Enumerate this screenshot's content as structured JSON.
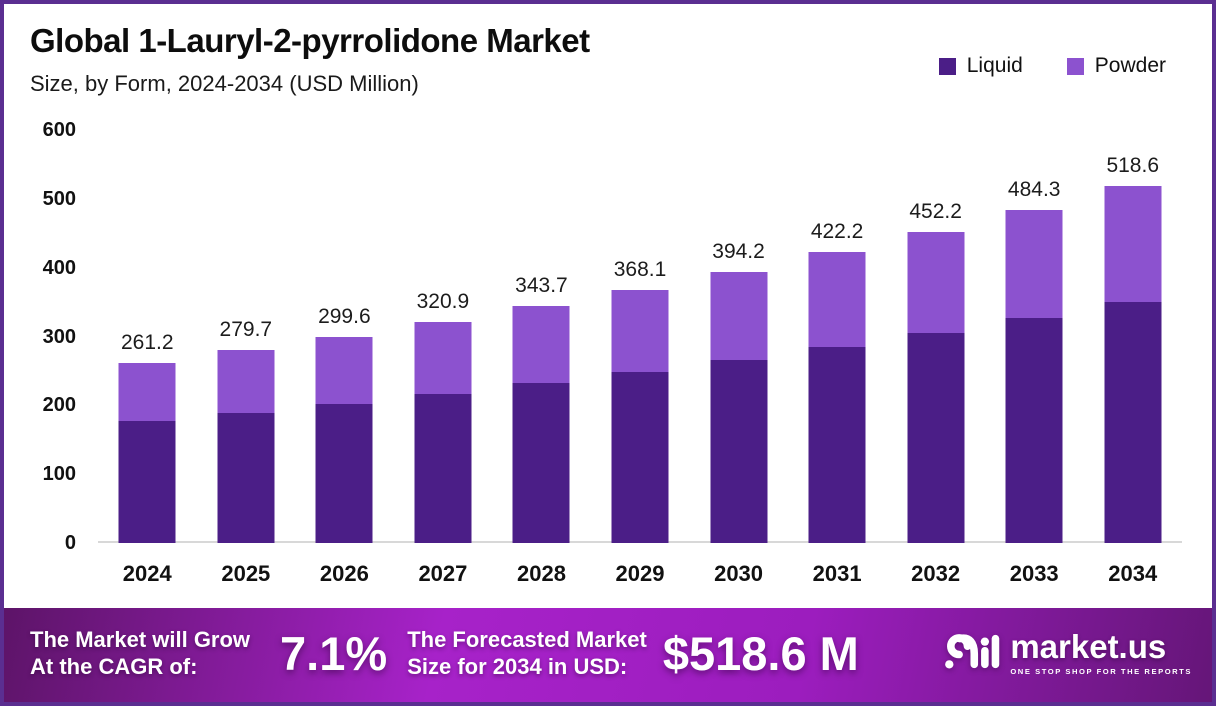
{
  "frame": {
    "border_color": "#5b2e91",
    "background": "#ffffff"
  },
  "header": {
    "title": "Global 1-Lauryl-2-pyrrolidone Market",
    "subtitle": "Size, by Form, 2024-2034 (USD Million)"
  },
  "chart_data": {
    "type": "bar",
    "stacked": true,
    "title": "Global 1-Lauryl-2-pyrrolidone Market Size, by Form, 2024-2034 (USD Million)",
    "categories": [
      "2024",
      "2025",
      "2026",
      "2027",
      "2028",
      "2029",
      "2030",
      "2031",
      "2032",
      "2033",
      "2034"
    ],
    "totals": [
      261.2,
      279.7,
      299.6,
      320.9,
      343.7,
      368.1,
      394.2,
      422.2,
      452.2,
      484.3,
      518.6
    ],
    "total_labels": [
      "261.2",
      "279.7",
      "299.6",
      "320.9",
      "343.7",
      "368.1",
      "394.2",
      "422.2",
      "452.2",
      "484.3",
      "518.6"
    ],
    "series": [
      {
        "name": "Liquid",
        "color": "#4b1e87",
        "values": [
          176.6,
          189.1,
          202.5,
          216.9,
          232.3,
          248.8,
          266.5,
          285.4,
          305.7,
          327.4,
          350.6
        ],
        "estimated_from_pixels": true
      },
      {
        "name": "Powder",
        "color": "#8c52cf",
        "values": [
          84.6,
          90.6,
          97.1,
          104.0,
          111.4,
          119.3,
          127.7,
          136.8,
          146.5,
          156.9,
          168.0
        ],
        "estimated_from_pixels": true
      }
    ],
    "xlabel": "",
    "ylabel": "",
    "y_ticks": [
      0,
      100,
      200,
      300,
      400,
      500,
      600
    ],
    "ylim": [
      0,
      600
    ],
    "grid": false,
    "baseline_color": "#d8d8d8",
    "legend_position": "top-right"
  },
  "footer": {
    "cagr_label_line1": "The Market will Grow",
    "cagr_label_line2": "At the CAGR of:",
    "cagr_value": "7.1%",
    "forecast_label_line1": "The Forecasted Market",
    "forecast_label_line2": "Size for 2034 in USD:",
    "forecast_value": "$518.6 M",
    "gradient_colors": [
      "#5d1468",
      "#a722c9",
      "#9c1dbe",
      "#651678"
    ],
    "brand": {
      "name": "market.us",
      "tagline": "ONE STOP SHOP FOR THE REPORTS"
    }
  }
}
